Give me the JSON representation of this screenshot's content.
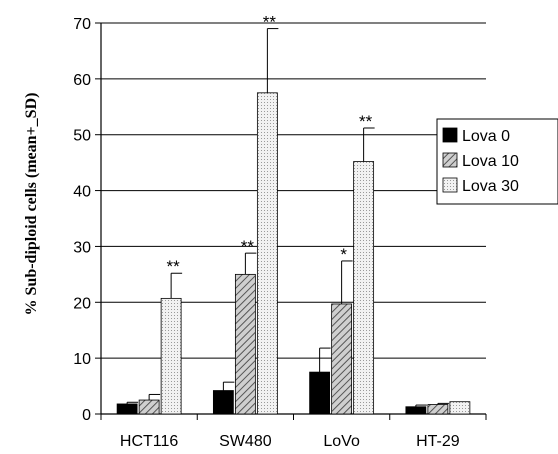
{
  "chart_data": {
    "type": "bar",
    "categories": [
      "HCT116",
      "SW480",
      "LoVo",
      "HT-29"
    ],
    "ylabel": "% Sub-diploid cells (mean+_SD)",
    "ylim": [
      0,
      70
    ],
    "yticks": [
      0,
      10,
      20,
      30,
      40,
      50,
      60,
      70
    ],
    "grid": true,
    "legend_position": "right",
    "series": [
      {
        "name": "Lova 0",
        "pattern": "solid-black",
        "values": [
          1.8,
          4.2,
          7.5,
          1.3
        ],
        "errors": [
          0.3,
          1.5,
          4.3,
          0.3
        ],
        "significance": [
          "",
          "",
          "",
          ""
        ]
      },
      {
        "name": "Lova 10",
        "pattern": "diagonal-hatch",
        "values": [
          2.5,
          25.0,
          19.7,
          1.7
        ],
        "errors": [
          1.0,
          3.8,
          7.7,
          0.2
        ],
        "significance": [
          "",
          "**",
          "*",
          ""
        ]
      },
      {
        "name": "Lova 30",
        "pattern": "light-dotted",
        "values": [
          20.7,
          57.5,
          45.2,
          2.2
        ],
        "errors": [
          4.5,
          11.5,
          6.0,
          0.0
        ],
        "significance": [
          "**",
          "**",
          "**",
          ""
        ]
      }
    ]
  }
}
